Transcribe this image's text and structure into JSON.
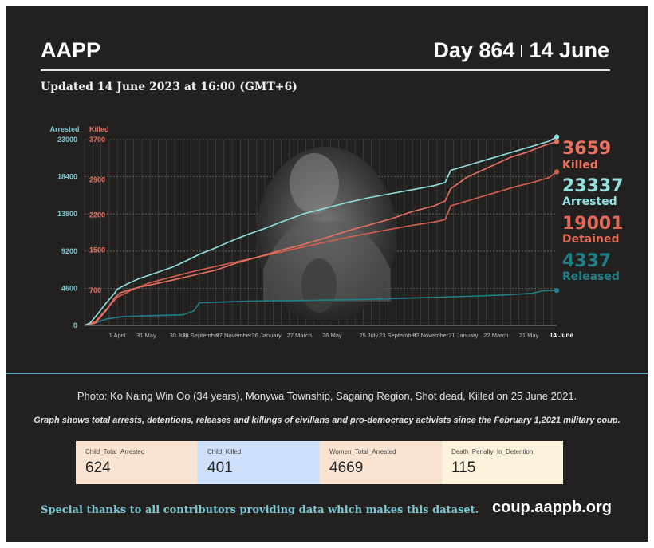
{
  "header": {
    "brand": "AAPP",
    "day_label": "Day 864",
    "date_label": "14 June",
    "updated": "Updated 14 June 2023 at 16:00 (GMT+6)"
  },
  "photo": {
    "caption": "Photo: Ko Naing Win Oo (34 years), Monywa Township, Sagaing Region, Shot dead, Killed on 25 June 2021."
  },
  "note": "Graph shows total arrests, detentions, releases and killings of civilians and pro-democracy activists since the February 1,2021 military coup.",
  "stats": [
    {
      "label": "Child_Total_Arrested",
      "value": "624",
      "color": "#fbe3d2"
    },
    {
      "label": "Child_Killed",
      "value": "401",
      "color": "#cfe0fb"
    },
    {
      "label": "Women_Total_Arrested",
      "value": "4669",
      "color": "#fbe3d2"
    },
    {
      "label": "Death_Penalty_In_Detention",
      "value": "115",
      "color": "#fdf2dc"
    }
  ],
  "footer": {
    "thanks": "Special thanks to all contributors providing data which makes this dataset.",
    "site": "coup.aappb.org"
  },
  "chart_data": {
    "type": "line",
    "x_axis_type": "days since start",
    "x_range": [
      0,
      864
    ],
    "x_ticks": [
      {
        "x": 60,
        "label": "1 April"
      },
      {
        "x": 113,
        "label": "31 May"
      },
      {
        "x": 173,
        "label": "30 July"
      },
      {
        "x": 213,
        "label": "28 September"
      },
      {
        "x": 273,
        "label": "27 November"
      },
      {
        "x": 333,
        "label": "26 January"
      },
      {
        "x": 393,
        "label": "27 March"
      },
      {
        "x": 453,
        "label": "26 May"
      },
      {
        "x": 520,
        "label": "25 July"
      },
      {
        "x": 573,
        "label": "23 September"
      },
      {
        "x": 633,
        "label": "22 November"
      },
      {
        "x": 693,
        "label": "21 January"
      },
      {
        "x": 753,
        "label": "22 March"
      },
      {
        "x": 813,
        "label": "21 May"
      },
      {
        "x": 864,
        "label": "14 June",
        "end": true
      }
    ],
    "left_axis": {
      "title": "Arrested",
      "color": "#79c8d3",
      "range": [
        0,
        23000
      ],
      "ticks": [
        0,
        4600,
        9200,
        13800,
        18400,
        23000
      ]
    },
    "right_axis": {
      "title": "Killed",
      "color": "#e8725f",
      "range": [
        0,
        3700
      ],
      "ticks": [
        0,
        700,
        1500,
        2200,
        2900,
        3700
      ]
    },
    "series": [
      {
        "name": "Arrested",
        "color": "#8fe0e0",
        "axis": "left",
        "x": [
          0,
          10,
          25,
          40,
          55,
          60,
          80,
          100,
          130,
          160,
          180,
          210,
          240,
          270,
          300,
          330,
          360,
          400,
          440,
          480,
          520,
          560,
          600,
          640,
          660,
          670,
          700,
          730,
          760,
          790,
          820,
          850,
          864
        ],
        "y": [
          0,
          300,
          1500,
          2800,
          4000,
          4500,
          5200,
          5800,
          6500,
          7200,
          7800,
          8800,
          9600,
          10500,
          11300,
          12000,
          12800,
          13800,
          14500,
          15200,
          15800,
          16300,
          16800,
          17300,
          17700,
          19200,
          19800,
          20400,
          21000,
          21600,
          22200,
          22800,
          23337
        ],
        "end_label": {
          "value": "23337",
          "text": "Arrested"
        }
      },
      {
        "name": "Killed",
        "color": "#e8725f",
        "axis": "right",
        "x": [
          0,
          20,
          40,
          55,
          65,
          80,
          100,
          130,
          160,
          200,
          240,
          280,
          320,
          360,
          400,
          440,
          480,
          520,
          560,
          600,
          640,
          660,
          670,
          700,
          740,
          780,
          810,
          840,
          864
        ],
        "y": [
          0,
          50,
          300,
          550,
          650,
          700,
          760,
          830,
          900,
          1000,
          1100,
          1250,
          1370,
          1500,
          1610,
          1740,
          1880,
          2000,
          2120,
          2270,
          2380,
          2480,
          2720,
          2950,
          3150,
          3350,
          3450,
          3580,
          3659
        ],
        "end_label": {
          "value": "3659",
          "text": "Killed"
        }
      },
      {
        "name": "Detained",
        "color": "#d4604e",
        "axis": "left",
        "x": [
          0,
          20,
          40,
          60,
          90,
          120,
          160,
          200,
          240,
          280,
          320,
          360,
          400,
          440,
          480,
          520,
          560,
          600,
          640,
          660,
          670,
          700,
          730,
          760,
          790,
          820,
          850,
          864
        ],
        "y": [
          0,
          500,
          2000,
          3500,
          4500,
          5300,
          6000,
          6700,
          7300,
          7900,
          8500,
          9100,
          9700,
          10300,
          10900,
          11400,
          11900,
          12400,
          12800,
          13100,
          14800,
          15400,
          16000,
          16600,
          17200,
          17700,
          18300,
          19001
        ],
        "end_label": {
          "value": "19001",
          "text": "Detained"
        }
      },
      {
        "name": "Released",
        "color": "#1e7f89",
        "axis": "left",
        "x": [
          0,
          20,
          40,
          70,
          120,
          180,
          200,
          210,
          300,
          400,
          500,
          600,
          700,
          780,
          820,
          840,
          864
        ],
        "y": [
          0,
          300,
          800,
          1100,
          1200,
          1300,
          1800,
          2800,
          3000,
          3100,
          3200,
          3400,
          3600,
          3800,
          4000,
          4300,
          4337
        ],
        "end_label": {
          "value": "4337",
          "text": "Released"
        }
      }
    ]
  }
}
